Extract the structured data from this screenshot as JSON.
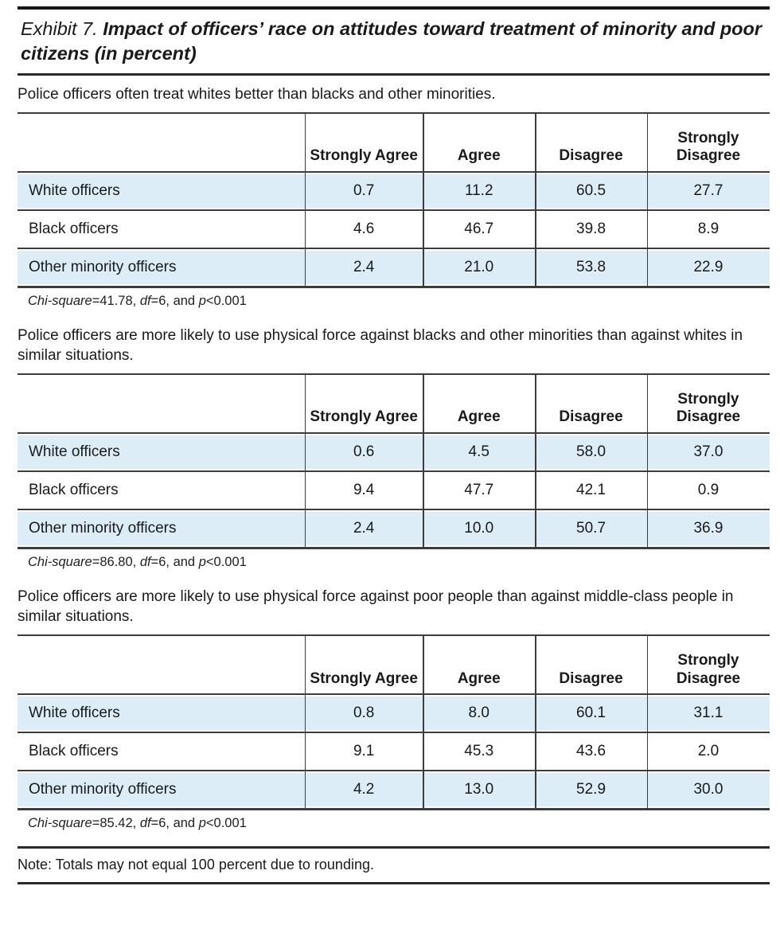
{
  "title": {
    "prefix": "Exhibit 7.",
    "main": "Impact of officers’ race on attitudes toward treatment of minority and poor citizens (in percent)"
  },
  "columns": [
    "Strongly Agree",
    "Agree",
    "Disagree",
    "Strongly Disagree"
  ],
  "colors": {
    "row_shading": "#dcedf7",
    "rule": "#3c3c3c",
    "text": "#1a1a1a"
  },
  "sections": [
    {
      "statement": "Police officers often treat whites better than blacks and other minorities.",
      "rows": [
        {
          "label": "White officers",
          "values": [
            "0.7",
            "11.2",
            "60.5",
            "27.7"
          ]
        },
        {
          "label": "Black officers",
          "values": [
            "4.6",
            "46.7",
            "39.8",
            "8.9"
          ]
        },
        {
          "label": "Other minority officers",
          "values": [
            "2.4",
            "21.0",
            "53.8",
            "22.9"
          ]
        }
      ],
      "stats": {
        "chi_label": "Chi-square",
        "chi_rest": "=41.78, ",
        "df_label": "df",
        "df_rest": "=6, and ",
        "p_label": "p",
        "p_rest": "<0.001"
      }
    },
    {
      "statement": "Police officers are more likely to use physical force against blacks and other minorities than against whites in similar situations.",
      "rows": [
        {
          "label": "White officers",
          "values": [
            "0.6",
            "4.5",
            "58.0",
            "37.0"
          ]
        },
        {
          "label": "Black officers",
          "values": [
            "9.4",
            "47.7",
            "42.1",
            "0.9"
          ]
        },
        {
          "label": "Other minority officers",
          "values": [
            "2.4",
            "10.0",
            "50.7",
            "36.9"
          ]
        }
      ],
      "stats": {
        "chi_label": "Chi-square",
        "chi_rest": "=86.80, ",
        "df_label": "df",
        "df_rest": "=6, and ",
        "p_label": "p",
        "p_rest": "<0.001"
      }
    },
    {
      "statement": "Police officers are more likely to use physical force against poor people than against middle-class people in similar situations.",
      "rows": [
        {
          "label": "White officers",
          "values": [
            "0.8",
            "8.0",
            "60.1",
            "31.1"
          ]
        },
        {
          "label": "Black officers",
          "values": [
            "9.1",
            "45.3",
            "43.6",
            "2.0"
          ]
        },
        {
          "label": "Other minority officers",
          "values": [
            "4.2",
            "13.0",
            "52.9",
            "30.0"
          ]
        }
      ],
      "stats": {
        "chi_label": "Chi-square",
        "chi_rest": "=85.42, ",
        "df_label": "df",
        "df_rest": "=6, and ",
        "p_label": "p",
        "p_rest": "<0.001"
      }
    }
  ],
  "footnote": "Note: Totals may not equal 100 percent due to rounding."
}
